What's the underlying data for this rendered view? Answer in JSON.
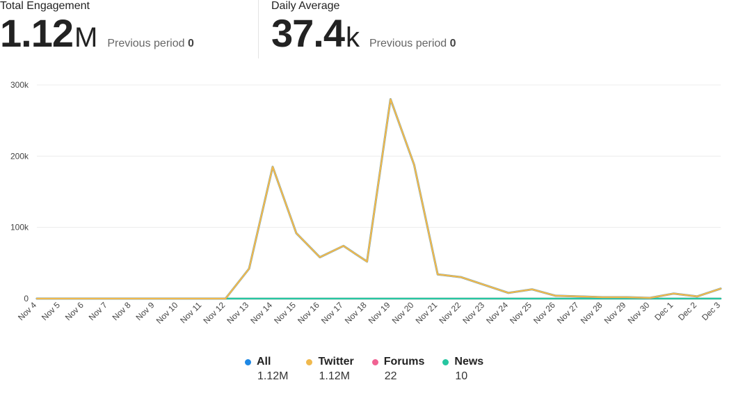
{
  "total": {
    "label": "Total Engagement",
    "value": "1.12",
    "unit": "M",
    "prev_label": "Previous period",
    "prev_value": "0"
  },
  "daily": {
    "label": "Daily Average",
    "value": "37.4",
    "unit": "k",
    "prev_label": "Previous period",
    "prev_value": "0"
  },
  "legend": [
    {
      "name": "All",
      "value": "1.12M",
      "color": "#1e88e5"
    },
    {
      "name": "Twitter",
      "value": "1.12M",
      "color": "#f0b94d"
    },
    {
      "name": "Forums",
      "value": "22",
      "color": "#f06292"
    },
    {
      "name": "News",
      "value": "10",
      "color": "#26c6a0"
    }
  ],
  "chart_data": {
    "type": "line",
    "categories": [
      "Nov 4",
      "Nov 5",
      "Nov 6",
      "Nov 7",
      "Nov 8",
      "Nov 9",
      "Nov 10",
      "Nov 11",
      "Nov 12",
      "Nov 13",
      "Nov 14",
      "Nov 15",
      "Nov 16",
      "Nov 17",
      "Nov 18",
      "Nov 19",
      "Nov 20",
      "Nov 21",
      "Nov 22",
      "Nov 23",
      "Nov 24",
      "Nov 25",
      "Nov 26",
      "Nov 27",
      "Nov 28",
      "Nov 29",
      "Nov 30",
      "Dec 1",
      "Dec 2",
      "Dec 3"
    ],
    "series": [
      {
        "name": "All",
        "color": "#1e88e5",
        "values": [
          0,
          0,
          0,
          0,
          0,
          0,
          0,
          0,
          0,
          42000,
          185000,
          92000,
          58000,
          74000,
          52000,
          280000,
          188000,
          34000,
          30000,
          19000,
          8000,
          13000,
          4000,
          3000,
          2000,
          2000,
          1000,
          7000,
          3000,
          14000
        ]
      },
      {
        "name": "Twitter",
        "color": "#f0b94d",
        "values": [
          0,
          0,
          0,
          0,
          0,
          0,
          0,
          0,
          0,
          42000,
          185000,
          92000,
          58000,
          74000,
          52000,
          280000,
          188000,
          34000,
          30000,
          19000,
          8000,
          13000,
          4000,
          3000,
          2000,
          2000,
          1000,
          7000,
          3000,
          14000
        ]
      },
      {
        "name": "Forums",
        "color": "#f06292",
        "values": [
          0,
          0,
          0,
          0,
          0,
          0,
          0,
          0,
          0,
          0,
          0,
          0,
          0,
          0,
          0,
          0,
          0,
          0,
          0,
          0,
          0,
          0,
          0,
          0,
          0,
          0,
          0,
          0,
          0,
          0
        ]
      },
      {
        "name": "News",
        "color": "#26c6a0",
        "values": [
          0,
          0,
          0,
          0,
          0,
          0,
          0,
          0,
          0,
          0,
          0,
          0,
          0,
          0,
          0,
          0,
          0,
          0,
          0,
          0,
          0,
          0,
          0,
          0,
          0,
          0,
          0,
          0,
          0,
          0
        ]
      }
    ],
    "y_ticks": [
      "0",
      "100k",
      "200k",
      "300k"
    ],
    "y_tick_values": [
      0,
      100000,
      200000,
      300000
    ],
    "ylim": [
      0,
      300000
    ],
    "grid": true,
    "legend_position": "bottom"
  }
}
